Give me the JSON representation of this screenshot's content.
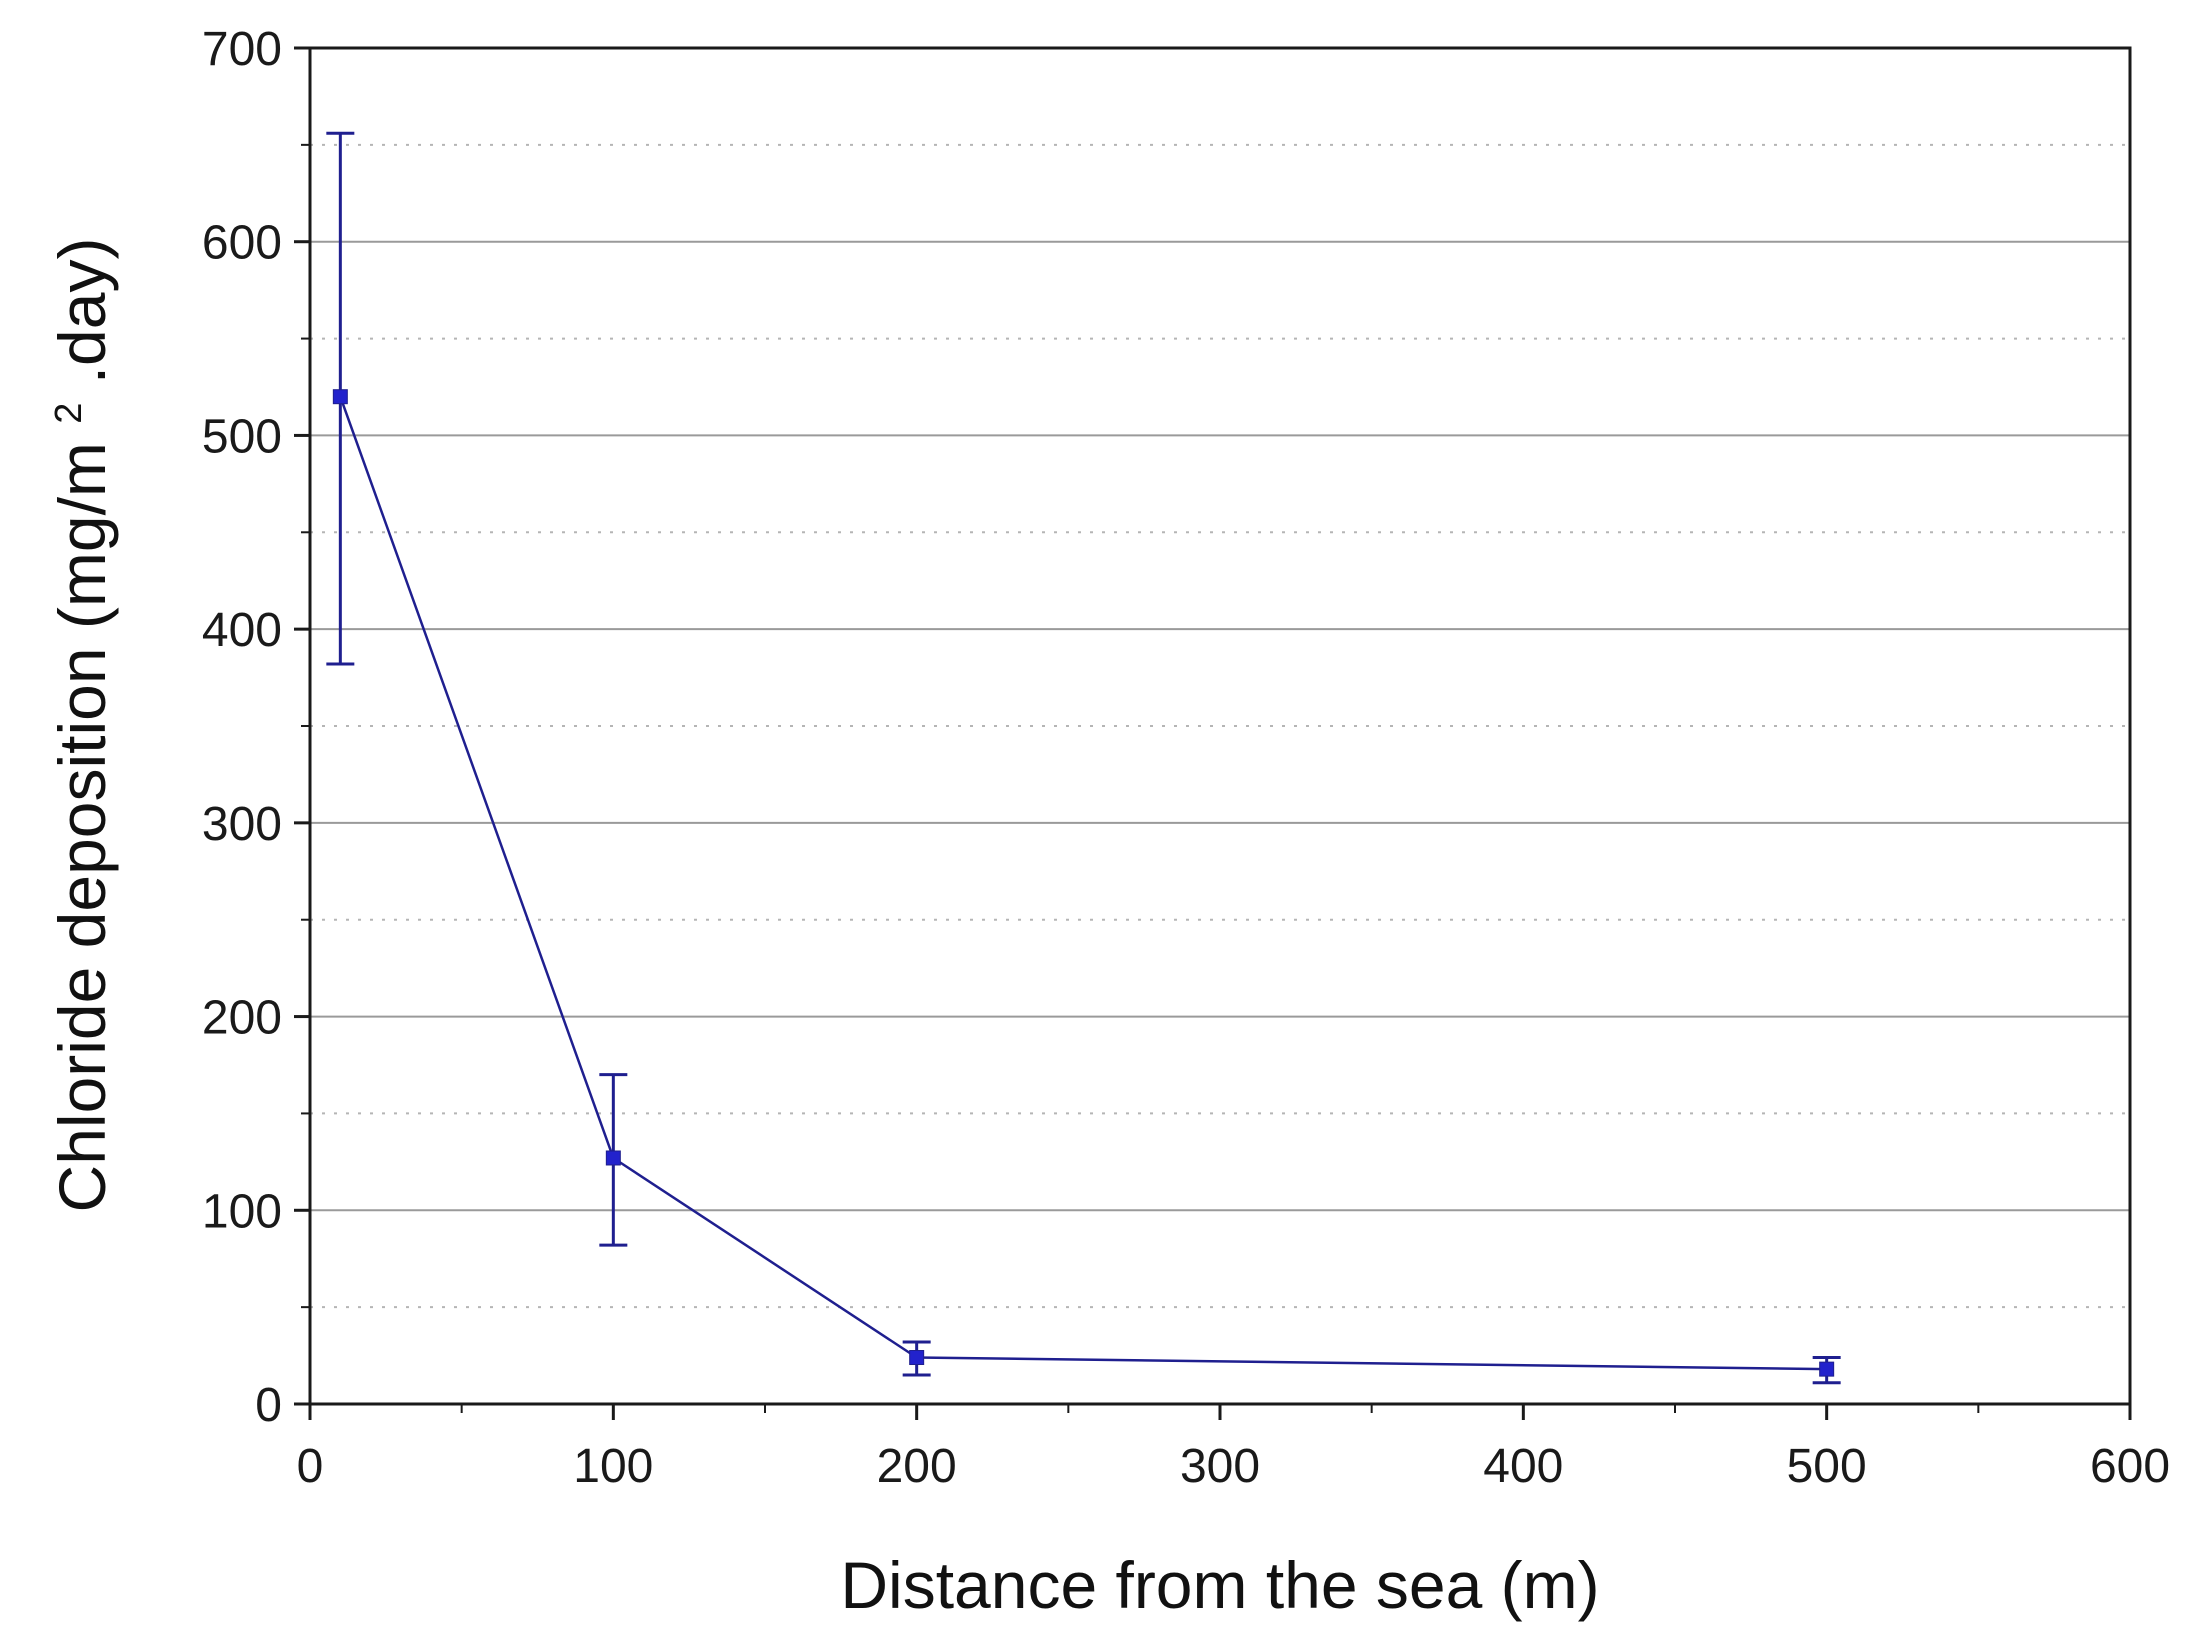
{
  "chart_data": {
    "type": "line",
    "title": "",
    "xlabel": "Distance from the sea (m)",
    "ylabel": {
      "main": "Chloride deposition",
      "unit_prefix": "(mg/m",
      "unit_superscript": "2",
      "unit_suffix": ".day)"
    },
    "x_ticks": [
      "0",
      "100",
      "200",
      "300",
      "400",
      "500",
      "600"
    ],
    "y_ticks": [
      "0",
      "100",
      "200",
      "300",
      "400",
      "500",
      "600",
      "700"
    ],
    "xlim": [
      0,
      600
    ],
    "ylim": [
      0,
      700
    ],
    "grid": {
      "major_solid": true,
      "minor_dotted": true
    },
    "colors": {
      "series": "#1f1f8f",
      "marker": "#2222cc",
      "grid_major": "#9a9a9a",
      "grid_minor": "#b5b5b5",
      "axis": "#1a1a1a"
    },
    "series": [
      {
        "x": [
          10,
          100,
          200,
          500
        ],
        "y": [
          520,
          127,
          24,
          18
        ],
        "error_low": [
          382,
          82,
          15,
          11
        ],
        "error_high": [
          656,
          170,
          32,
          24
        ]
      }
    ]
  }
}
